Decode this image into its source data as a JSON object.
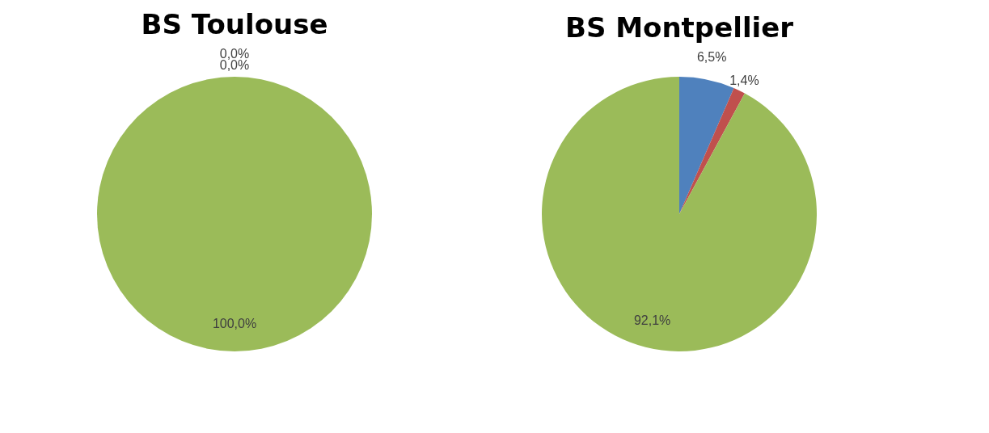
{
  "chart_data": [
    {
      "type": "pie",
      "title": "BS Toulouse",
      "categories": [
        null,
        null,
        null
      ],
      "values": [
        0,
        0,
        100
      ],
      "colors": [
        "#4f81bd",
        "#c0504d",
        "#9bbb59"
      ],
      "value_labels": [
        "0,0%",
        "0,0%",
        "100,0%"
      ]
    },
    {
      "type": "pie",
      "title": "BS Montpellier",
      "categories": [
        null,
        null,
        null
      ],
      "values": [
        6.5,
        1.4,
        92.1
      ],
      "colors": [
        "#4f81bd",
        "#c0504d",
        "#9bbb59"
      ],
      "value_labels": [
        "6,5%",
        "1,4%",
        "92,1%"
      ]
    }
  ]
}
